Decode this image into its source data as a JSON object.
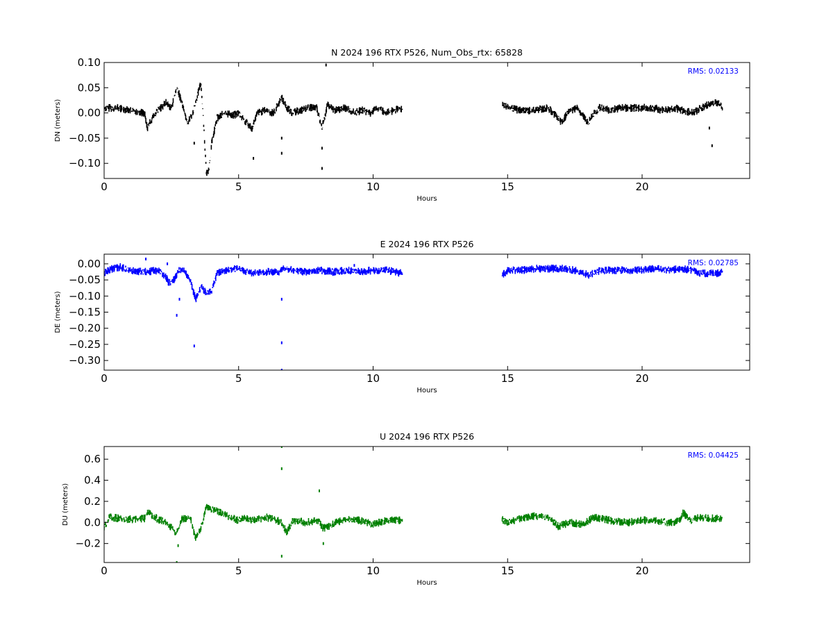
{
  "chart_data": [
    {
      "type": "scatter",
      "title": "N 2024 196 RTX  P526, Num_Obs_rtx: 65828",
      "xlabel": "Hours",
      "ylabel": "DN (meters)",
      "xlim": [
        0,
        24
      ],
      "ylim": [
        -0.13,
        0.1
      ],
      "xticks": [
        0,
        5,
        10,
        15,
        20
      ],
      "xtick_labels": [
        "0",
        "5",
        "10",
        "15",
        "20"
      ],
      "yticks": [
        0.1,
        0.05,
        0.0,
        -0.05,
        -0.1
      ],
      "ytick_labels": [
        "0.10",
        "0.05",
        "0.00",
        "−0.05",
        "−0.10"
      ],
      "rms_label": "RMS:  0.02133",
      "grid": false,
      "series": [
        {
          "color": "#000000",
          "x": [
            0.0,
            0.5,
            1.0,
            1.5,
            1.6,
            1.8,
            2.0,
            2.3,
            2.5,
            2.7,
            2.9,
            3.1,
            3.3,
            3.5,
            3.6,
            3.7,
            3.8,
            3.9,
            4.0,
            4.2,
            4.5,
            4.8,
            5.0,
            5.3,
            5.5,
            5.7,
            6.0,
            6.3,
            6.6,
            6.8,
            7.0,
            7.3,
            7.6,
            7.9,
            8.1,
            8.3,
            8.6,
            9.0,
            9.3,
            9.6,
            9.9,
            10.2,
            10.5,
            10.8,
            11.1,
            14.8,
            15.0,
            15.5,
            16.0,
            16.5,
            16.9,
            17.0,
            17.3,
            17.6,
            18.0,
            18.1,
            18.4,
            18.8,
            19.2,
            19.6,
            20.0,
            20.4,
            20.8,
            21.2,
            21.5,
            21.9,
            22.2,
            22.6,
            22.9,
            23.0
          ],
          "y": [
            0.01,
            0.01,
            0.005,
            0.0,
            -0.03,
            -0.01,
            0.005,
            0.02,
            0.01,
            0.05,
            0.02,
            -0.02,
            0.0,
            0.04,
            0.06,
            -0.02,
            -0.12,
            -0.11,
            -0.06,
            -0.01,
            0.0,
            -0.005,
            0.0,
            -0.02,
            -0.03,
            0.0,
            0.005,
            0.0,
            0.03,
            0.01,
            0.0,
            0.005,
            0.01,
            0.01,
            -0.03,
            0.015,
            0.005,
            0.01,
            0.0,
            0.005,
            0.0,
            0.01,
            0.0,
            0.005,
            0.01,
            0.02,
            0.01,
            0.005,
            0.005,
            0.01,
            -0.01,
            -0.02,
            0.005,
            0.01,
            -0.02,
            -0.01,
            0.01,
            0.005,
            0.01,
            0.01,
            0.01,
            0.01,
            0.005,
            0.01,
            0.005,
            0.0,
            0.01,
            0.02,
            0.02,
            0.01
          ],
          "outliers_x": [
            3.35,
            6.6,
            6.6,
            8.1,
            8.1,
            8.25,
            22.5,
            22.6,
            5.55
          ],
          "outliers_y": [
            -0.06,
            -0.05,
            -0.08,
            -0.07,
            -0.11,
            0.095,
            -0.03,
            -0.065,
            -0.09
          ]
        }
      ]
    },
    {
      "type": "scatter",
      "title": "E 2024 196 RTX  P526",
      "xlabel": "Hours",
      "ylabel": "DE (meters)",
      "xlim": [
        0,
        24
      ],
      "ylim": [
        -0.33,
        0.03
      ],
      "xticks": [
        0,
        5,
        10,
        15,
        20
      ],
      "xtick_labels": [
        "0",
        "5",
        "10",
        "15",
        "20"
      ],
      "yticks": [
        0.0,
        -0.05,
        -0.1,
        -0.15,
        -0.2,
        -0.25,
        -0.3
      ],
      "ytick_labels": [
        "0.00",
        "−0.05",
        "−0.10",
        "−0.15",
        "−0.20",
        "−0.25",
        "−0.30"
      ],
      "rms_label": "RMS:  0.02785",
      "grid": false,
      "series": [
        {
          "color": "#0000ff",
          "x": [
            0.0,
            0.3,
            0.6,
            1.0,
            1.5,
            2.0,
            2.3,
            2.4,
            2.6,
            2.8,
            3.0,
            3.2,
            3.4,
            3.6,
            3.8,
            4.0,
            4.2,
            4.5,
            5.0,
            5.5,
            6.0,
            6.5,
            6.7,
            7.0,
            7.5,
            8.0,
            8.5,
            9.0,
            9.5,
            10.0,
            10.5,
            11.1,
            14.8,
            15.0,
            15.5,
            16.0,
            16.5,
            17.0,
            17.5,
            18.0,
            18.5,
            19.0,
            19.5,
            20.0,
            20.5,
            21.0,
            21.5,
            21.8,
            22.2,
            22.5,
            22.8,
            23.0
          ],
          "y": [
            -0.03,
            -0.015,
            -0.01,
            -0.02,
            -0.025,
            -0.02,
            -0.04,
            -0.06,
            -0.05,
            -0.02,
            -0.025,
            -0.05,
            -0.11,
            -0.07,
            -0.09,
            -0.08,
            -0.03,
            -0.02,
            -0.015,
            -0.03,
            -0.025,
            -0.025,
            -0.01,
            -0.02,
            -0.025,
            -0.02,
            -0.025,
            -0.02,
            -0.025,
            -0.02,
            -0.02,
            -0.03,
            -0.035,
            -0.02,
            -0.02,
            -0.015,
            -0.015,
            -0.015,
            -0.02,
            -0.035,
            -0.02,
            -0.02,
            -0.02,
            -0.02,
            -0.015,
            -0.02,
            -0.015,
            -0.02,
            -0.03,
            -0.03,
            -0.03,
            -0.025
          ],
          "outliers_x": [
            1.55,
            2.35,
            2.7,
            2.8,
            3.35,
            6.6,
            6.6,
            6.6,
            9.3
          ],
          "outliers_y": [
            0.015,
            0.0,
            -0.16,
            -0.11,
            -0.255,
            -0.11,
            -0.245,
            -0.33,
            -0.005
          ]
        }
      ]
    },
    {
      "type": "scatter",
      "title": "U 2024 196 RTX  P526",
      "xlabel": "Hours",
      "ylabel": "DU (meters)",
      "xlim": [
        0,
        24
      ],
      "ylim": [
        -0.38,
        0.72
      ],
      "xticks": [
        0,
        5,
        10,
        15,
        20
      ],
      "xtick_labels": [
        "0",
        "5",
        "10",
        "15",
        "20"
      ],
      "yticks": [
        0.6,
        0.4,
        0.2,
        0.0,
        -0.2
      ],
      "ytick_labels": [
        "0.6",
        "0.4",
        "0.2",
        "0.0",
        "−0.2"
      ],
      "rms_label": "RMS:  0.04425",
      "grid": false,
      "series": [
        {
          "color": "#008000",
          "x": [
            0.0,
            0.2,
            0.5,
            1.0,
            1.5,
            1.6,
            2.0,
            2.3,
            2.5,
            2.7,
            2.9,
            3.2,
            3.4,
            3.6,
            3.8,
            4.0,
            4.3,
            4.7,
            5.0,
            5.3,
            5.6,
            6.0,
            6.3,
            6.6,
            6.8,
            7.0,
            7.5,
            8.0,
            8.1,
            8.3,
            8.6,
            9.0,
            9.5,
            10.0,
            10.5,
            11.1,
            14.8,
            15.0,
            15.5,
            16.0,
            16.5,
            16.9,
            17.3,
            17.8,
            18.2,
            18.6,
            19.0,
            19.5,
            20.0,
            20.5,
            21.0,
            21.4,
            21.5,
            21.8,
            22.2,
            22.6,
            23.0
          ],
          "y": [
            -0.05,
            0.05,
            0.04,
            0.03,
            0.04,
            0.1,
            0.03,
            0.0,
            -0.05,
            -0.1,
            0.03,
            0.05,
            -0.15,
            -0.05,
            0.15,
            0.12,
            0.1,
            0.05,
            0.02,
            0.04,
            0.02,
            0.05,
            0.03,
            0.0,
            -0.1,
            0.02,
            0.0,
            0.02,
            -0.05,
            -0.05,
            0.0,
            0.03,
            0.02,
            -0.02,
            0.02,
            0.02,
            0.03,
            0.0,
            0.04,
            0.06,
            0.05,
            -0.04,
            0.0,
            -0.02,
            0.05,
            0.03,
            0.01,
            0.0,
            0.02,
            0.02,
            0.0,
            0.01,
            0.1,
            0.02,
            0.05,
            0.04,
            0.03
          ],
          "outliers_x": [
            2.7,
            2.75,
            6.6,
            6.6,
            6.6,
            8.0,
            8.15
          ],
          "outliers_y": [
            -0.38,
            -0.22,
            0.72,
            0.51,
            -0.32,
            0.3,
            -0.2
          ]
        }
      ]
    }
  ]
}
